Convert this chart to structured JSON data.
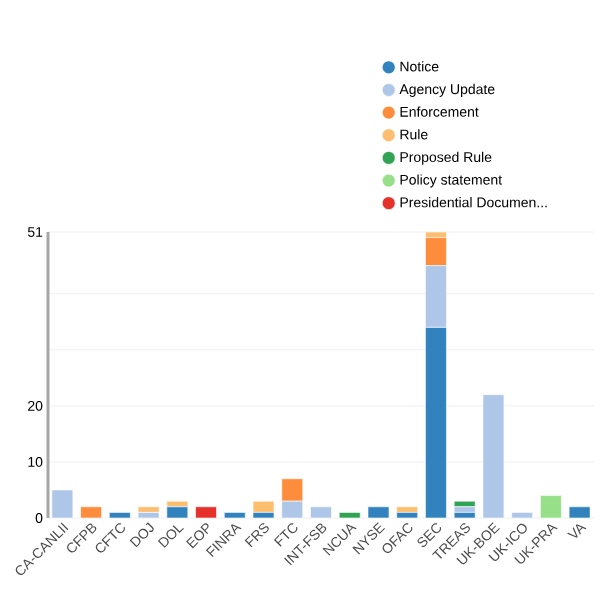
{
  "chart_data": {
    "type": "bar",
    "stacked": true,
    "legend": "top",
    "grid": "y",
    "categories": [
      "CA-CANLII",
      "CFPB",
      "CFTC",
      "DOJ",
      "DOL",
      "EOP",
      "FINRA",
      "FRS",
      "FTC",
      "INT-FSB",
      "NCUA",
      "NYSE",
      "OFAC",
      "SEC",
      "TREAS",
      "UK-BOE",
      "UK-ICO",
      "UK-PRA",
      "VA"
    ],
    "ylim": [
      0,
      51
    ],
    "yticks": [
      0,
      10,
      20,
      {
        "value": 30,
        "label": null
      },
      {
        "value": 40,
        "label": null
      },
      51
    ],
    "series": [
      {
        "name": "Notice",
        "color": "#3182bd",
        "values": [
          0,
          0,
          1,
          0,
          2,
          0,
          1,
          1,
          0,
          0,
          0,
          2,
          1,
          34,
          1,
          0,
          0,
          0,
          2
        ]
      },
      {
        "name": "Agency Update",
        "color": "#aec7e8",
        "values": [
          5,
          0,
          0,
          1,
          0,
          0,
          0,
          0,
          3,
          2,
          0,
          0,
          0,
          11,
          1,
          22,
          1,
          0,
          0
        ]
      },
      {
        "name": "Enforcement",
        "color": "#fd8d3c",
        "values": [
          0,
          2,
          0,
          0,
          0,
          0,
          0,
          0,
          4,
          0,
          0,
          0,
          0,
          5,
          0,
          0,
          0,
          0,
          0
        ]
      },
      {
        "name": "Rule",
        "color": "#fdbf6f",
        "values": [
          0,
          0,
          0,
          1,
          1,
          0,
          0,
          2,
          0,
          0,
          0,
          0,
          1,
          1,
          0,
          0,
          0,
          0,
          0
        ]
      },
      {
        "name": "Proposed Rule",
        "color": "#31a354",
        "values": [
          0,
          0,
          0,
          0,
          0,
          0,
          0,
          0,
          0,
          0,
          1,
          0,
          0,
          0,
          1,
          0,
          0,
          0,
          0
        ]
      },
      {
        "name": "Policy statement",
        "color": "#98df8a",
        "values": [
          0,
          0,
          0,
          0,
          0,
          0,
          0,
          0,
          0,
          0,
          0,
          0,
          0,
          0,
          0,
          0,
          0,
          4,
          0
        ]
      },
      {
        "name": "Presidential Documen...",
        "color": "#e6302a",
        "values": [
          0,
          0,
          0,
          0,
          0,
          2,
          0,
          0,
          0,
          0,
          0,
          0,
          0,
          0,
          0,
          0,
          0,
          0,
          0
        ]
      }
    ]
  }
}
